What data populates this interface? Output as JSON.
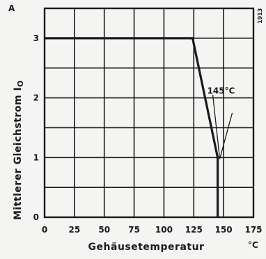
{
  "chart_data": {
    "type": "line",
    "title": "",
    "xlabel": "Gehäusetemperatur",
    "x_unit": "°C",
    "ylabel": "Mittlerer Gleichstrom I",
    "ylabel_subscript": "O",
    "y_unit": "A",
    "side_note": "1913",
    "xlim": [
      0,
      175
    ],
    "ylim": [
      0,
      3.5
    ],
    "x_ticks": [
      0,
      25,
      50,
      75,
      100,
      125,
      150,
      175
    ],
    "y_ticks": [
      0,
      1,
      2,
      3
    ],
    "x_tick_labels": [
      "0",
      "25",
      "50",
      "75",
      "100",
      "125",
      "150",
      "175"
    ],
    "y_tick_labels": [
      "0",
      "1",
      "2",
      "3"
    ],
    "grid": true,
    "series": [
      {
        "x": [
          0,
          124,
          145,
          145
        ],
        "y": [
          3,
          3,
          1,
          0
        ]
      }
    ],
    "annotations": [
      {
        "text": "145°C",
        "x": 145,
        "y": 1
      }
    ]
  }
}
